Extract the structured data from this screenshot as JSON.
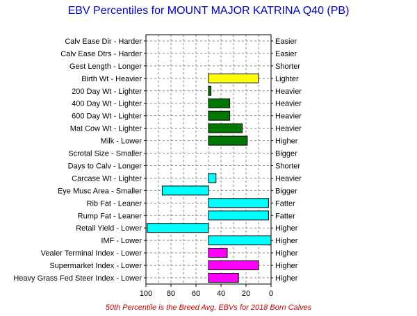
{
  "chart_data": {
    "type": "bar",
    "orientation": "horizontal",
    "title": "EBV Percentiles for MOUNT MAJOR KATRINA Q40 (PB)",
    "footnote": "50th Percentile is the Breed Avg. EBVs for 2018 Born Calves",
    "xlim": [
      100,
      0
    ],
    "baseline": 50,
    "xticks": [
      "100",
      "80",
      "60",
      "40",
      "20",
      "0"
    ],
    "grid": true,
    "rows": [
      {
        "left": "Calv Ease Dir - Harder",
        "right": "Easier",
        "value": null,
        "color": ""
      },
      {
        "left": "Calv Ease Dtrs - Harder",
        "right": "Easier",
        "value": null,
        "color": ""
      },
      {
        "left": "Gest Length - Longer",
        "right": "Shorter",
        "value": null,
        "color": ""
      },
      {
        "left": "Birth Wt - Heavier",
        "right": "Lighter",
        "value": 10,
        "color": "#ffff00"
      },
      {
        "left": "200 Day Wt - Lighter",
        "right": "Heavier",
        "value": 48,
        "color": "#007700"
      },
      {
        "left": "400 Day Wt - Lighter",
        "right": "Heavier",
        "value": 33,
        "color": "#007700"
      },
      {
        "left": "600 Day Wt - Lighter",
        "right": "Heavier",
        "value": 33,
        "color": "#007700"
      },
      {
        "left": "Mat Cow Wt - Lighter",
        "right": "Heavier",
        "value": 23,
        "color": "#007700"
      },
      {
        "left": "Milk - Lower",
        "right": "Higher",
        "value": 19,
        "color": "#007700"
      },
      {
        "left": "Scrotal Size - Smaller",
        "right": "Bigger",
        "value": null,
        "color": ""
      },
      {
        "left": "Days to Calv - Longer",
        "right": "Shorter",
        "value": null,
        "color": ""
      },
      {
        "left": "Carcase Wt - Lighter",
        "right": "Heavier",
        "value": 44,
        "color": "#00ffff"
      },
      {
        "left": "Eye Musc Area - Smaller",
        "right": "Bigger",
        "value": 87,
        "color": "#00ffff"
      },
      {
        "left": "Rib Fat - Leaner",
        "right": "Fatter",
        "value": 2,
        "color": "#00ffff"
      },
      {
        "left": "Rump Fat - Leaner",
        "right": "Fatter",
        "value": 2,
        "color": "#00ffff"
      },
      {
        "left": "Retail Yield - Lower",
        "right": "Higher",
        "value": 99,
        "color": "#00ffff"
      },
      {
        "left": "IMF - Lower",
        "right": "Higher",
        "value": 0,
        "color": "#00ffff"
      },
      {
        "left": "Vealer Terminal Index - Lower",
        "right": "Higher",
        "value": 35,
        "color": "#ff00ff"
      },
      {
        "left": "Supermarket Index - Lower",
        "right": "Higher",
        "value": 10,
        "color": "#ff00ff"
      },
      {
        "left": "Heavy Grass Fed Steer Index - Lower",
        "right": "Higher",
        "value": 26,
        "color": "#ff00ff"
      }
    ]
  }
}
